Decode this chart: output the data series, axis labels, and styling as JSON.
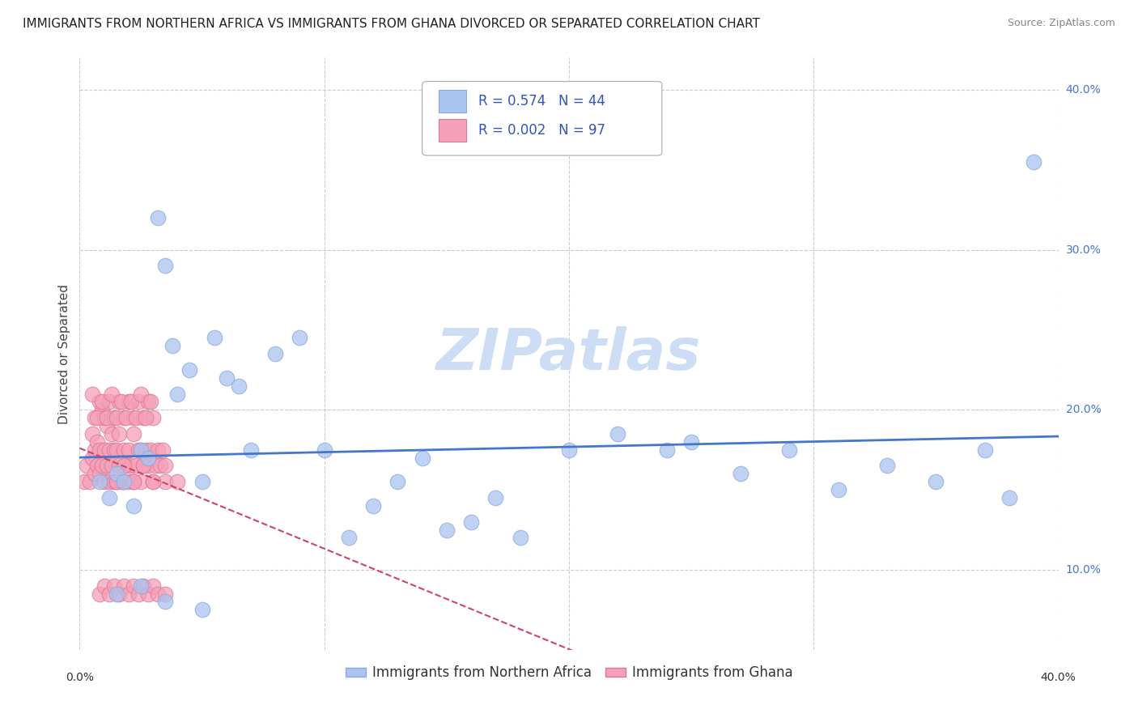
{
  "title": "IMMIGRANTS FROM NORTHERN AFRICA VS IMMIGRANTS FROM GHANA DIVORCED OR SEPARATED CORRELATION CHART",
  "source": "Source: ZipAtlas.com",
  "ylabel": "Divorced or Separated",
  "xlim": [
    0.0,
    0.4
  ],
  "ylim": [
    0.05,
    0.42
  ],
  "yticks": [
    0.1,
    0.2,
    0.3,
    0.4
  ],
  "ytick_labels": [
    "10.0%",
    "20.0%",
    "30.0%",
    "40.0%"
  ],
  "xticks": [
    0.0,
    0.1,
    0.2,
    0.3,
    0.4
  ],
  "grid_color": "#cccccc",
  "background_color": "#ffffff",
  "watermark": "ZIPatlas",
  "watermark_color": "#ccddf5",
  "blue_color": "#aac4f0",
  "blue_edge": "#88aadd",
  "pink_color": "#f5a0b8",
  "pink_edge": "#dd7799",
  "blue_R": "0.574",
  "blue_N": "44",
  "pink_R": "0.002",
  "pink_N": "97",
  "legend_text_color": "#3355bb",
  "trendline_blue_color": "#4477cc",
  "trendline_pink_color": "#cc4466",
  "title_fontsize": 11,
  "source_fontsize": 9,
  "axis_label_fontsize": 11,
  "tick_fontsize": 10,
  "legend_fontsize": 12,
  "blue_x": [
    0.008,
    0.012,
    0.015,
    0.018,
    0.022,
    0.025,
    0.028,
    0.032,
    0.035,
    0.038,
    0.04,
    0.045,
    0.05,
    0.055,
    0.06,
    0.065,
    0.07,
    0.08,
    0.09,
    0.1,
    0.11,
    0.12,
    0.13,
    0.14,
    0.15,
    0.16,
    0.17,
    0.18,
    0.2,
    0.22,
    0.24,
    0.25,
    0.27,
    0.29,
    0.31,
    0.33,
    0.35,
    0.37,
    0.38,
    0.39,
    0.015,
    0.025,
    0.035,
    0.05
  ],
  "blue_y": [
    0.155,
    0.145,
    0.16,
    0.155,
    0.14,
    0.175,
    0.17,
    0.32,
    0.29,
    0.24,
    0.21,
    0.225,
    0.155,
    0.245,
    0.22,
    0.215,
    0.175,
    0.235,
    0.245,
    0.175,
    0.12,
    0.14,
    0.155,
    0.17,
    0.125,
    0.13,
    0.145,
    0.12,
    0.175,
    0.185,
    0.175,
    0.18,
    0.16,
    0.175,
    0.15,
    0.165,
    0.155,
    0.175,
    0.145,
    0.355,
    0.085,
    0.09,
    0.08,
    0.075
  ],
  "pink_x": [
    0.002,
    0.003,
    0.004,
    0.005,
    0.005,
    0.006,
    0.006,
    0.007,
    0.007,
    0.008,
    0.008,
    0.009,
    0.009,
    0.01,
    0.01,
    0.011,
    0.011,
    0.012,
    0.012,
    0.013,
    0.013,
    0.014,
    0.014,
    0.015,
    0.015,
    0.016,
    0.016,
    0.017,
    0.018,
    0.018,
    0.019,
    0.02,
    0.02,
    0.021,
    0.022,
    0.022,
    0.023,
    0.024,
    0.025,
    0.025,
    0.026,
    0.027,
    0.028,
    0.029,
    0.03,
    0.031,
    0.032,
    0.033,
    0.034,
    0.035,
    0.006,
    0.008,
    0.01,
    0.012,
    0.014,
    0.016,
    0.018,
    0.02,
    0.022,
    0.024,
    0.026,
    0.028,
    0.03,
    0.005,
    0.007,
    0.009,
    0.011,
    0.013,
    0.015,
    0.017,
    0.019,
    0.021,
    0.023,
    0.025,
    0.027,
    0.029,
    0.008,
    0.01,
    0.012,
    0.014,
    0.016,
    0.018,
    0.02,
    0.022,
    0.024,
    0.026,
    0.028,
    0.03,
    0.032,
    0.035,
    0.015,
    0.018,
    0.022,
    0.026,
    0.03,
    0.035,
    0.04
  ],
  "pink_y": [
    0.155,
    0.165,
    0.155,
    0.17,
    0.185,
    0.16,
    0.175,
    0.165,
    0.18,
    0.16,
    0.175,
    0.165,
    0.2,
    0.155,
    0.175,
    0.165,
    0.19,
    0.155,
    0.175,
    0.165,
    0.185,
    0.155,
    0.175,
    0.155,
    0.175,
    0.165,
    0.185,
    0.155,
    0.155,
    0.175,
    0.165,
    0.155,
    0.175,
    0.165,
    0.155,
    0.185,
    0.165,
    0.175,
    0.155,
    0.175,
    0.165,
    0.175,
    0.165,
    0.175,
    0.155,
    0.165,
    0.175,
    0.165,
    0.175,
    0.155,
    0.195,
    0.205,
    0.195,
    0.205,
    0.195,
    0.205,
    0.195,
    0.205,
    0.195,
    0.205,
    0.195,
    0.205,
    0.195,
    0.21,
    0.195,
    0.205,
    0.195,
    0.21,
    0.195,
    0.205,
    0.195,
    0.205,
    0.195,
    0.21,
    0.195,
    0.205,
    0.085,
    0.09,
    0.085,
    0.09,
    0.085,
    0.09,
    0.085,
    0.09,
    0.085,
    0.09,
    0.085,
    0.09,
    0.085,
    0.085,
    0.155,
    0.165,
    0.155,
    0.165,
    0.155,
    0.165,
    0.155
  ]
}
